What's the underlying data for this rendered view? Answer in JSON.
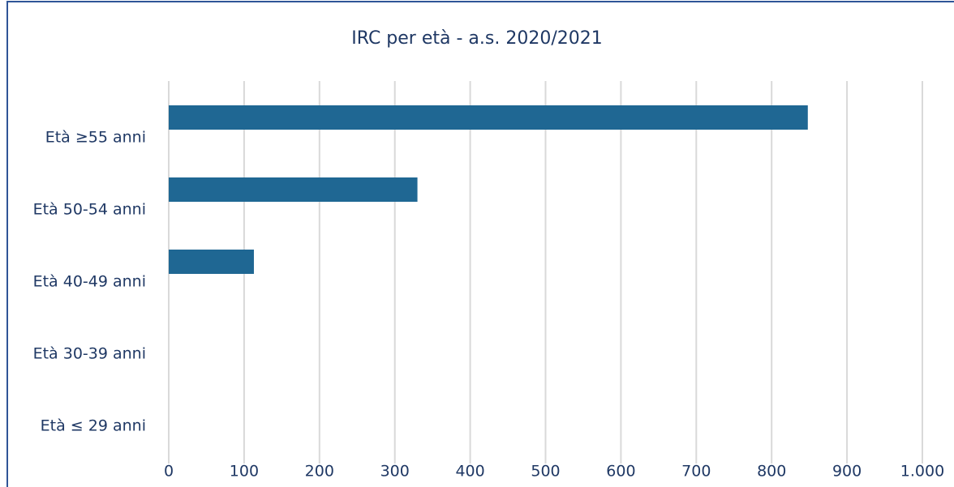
{
  "chart_data": {
    "type": "hbar",
    "title": "IRC per età - a.s. 2020/2021",
    "categories": [
      "Età ≥55 anni",
      "Età 50-54 anni",
      "Età 40-49 anni",
      "Età 30-39 anni",
      "Età ≤ 29 anni"
    ],
    "values": [
      848,
      330,
      113,
      0,
      0
    ],
    "color": "#1f6793",
    "xlim": [
      0,
      1000
    ],
    "xticks": [
      0,
      100,
      200,
      300,
      400,
      500,
      600,
      700,
      800,
      900,
      {
        "value": 1000,
        "label": "1.000"
      }
    ],
    "grid": true
  }
}
